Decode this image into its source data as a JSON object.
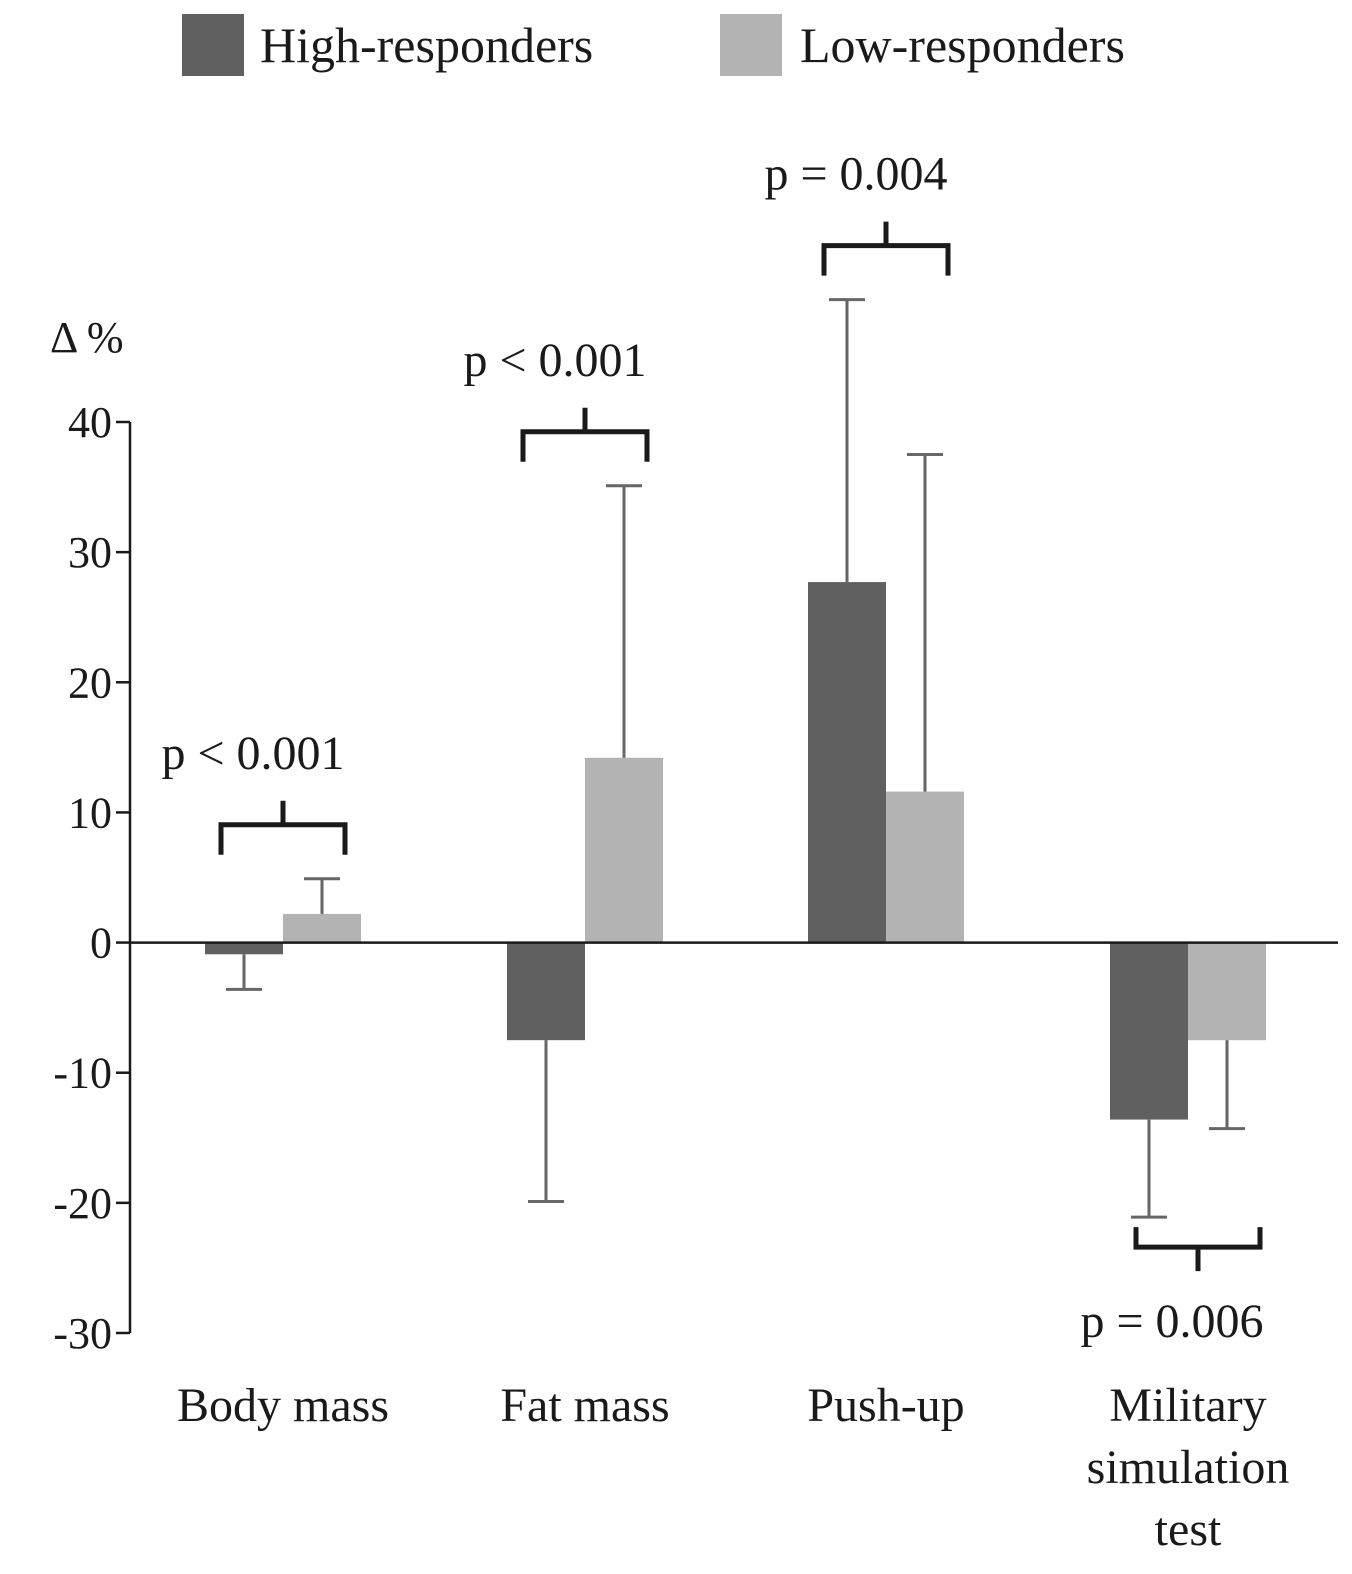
{
  "chart_data": {
    "type": "bar",
    "title": "",
    "xlabel": "",
    "ylabel": "Δ %",
    "ylim": [
      -30,
      40
    ],
    "yticks": [
      40,
      30,
      20,
      10,
      0,
      -10,
      -20,
      -30
    ],
    "ytick_labels": [
      "40",
      "30",
      "20",
      "10",
      "0",
      "-10",
      "-20",
      "-30"
    ],
    "grid": false,
    "legend_position": "top",
    "categories": [
      [
        "Body mass"
      ],
      [
        "Fat mass"
      ],
      [
        "Push-up"
      ],
      [
        "Military",
        "simulation",
        "test"
      ]
    ],
    "series": [
      {
        "name": "High-responders",
        "color": "#606060",
        "values": [
          -0.9,
          -7.5,
          27.7,
          -13.6
        ],
        "error": [
          2.7,
          12.4,
          21.7,
          7.5
        ]
      },
      {
        "name": "Low-responders",
        "color": "#b3b3b3",
        "values": [
          2.2,
          14.2,
          11.6,
          -7.5
        ],
        "error": [
          2.7,
          20.9,
          25.9,
          6.8
        ]
      }
    ],
    "annotations": [
      {
        "category": 0,
        "text": "p < 0.001",
        "placement": "above"
      },
      {
        "category": 1,
        "text": "p < 0.001",
        "placement": "above"
      },
      {
        "category": 2,
        "text": "p = 0.004",
        "placement": "above"
      },
      {
        "category": 3,
        "text": "p = 0.006",
        "placement": "below"
      }
    ]
  }
}
